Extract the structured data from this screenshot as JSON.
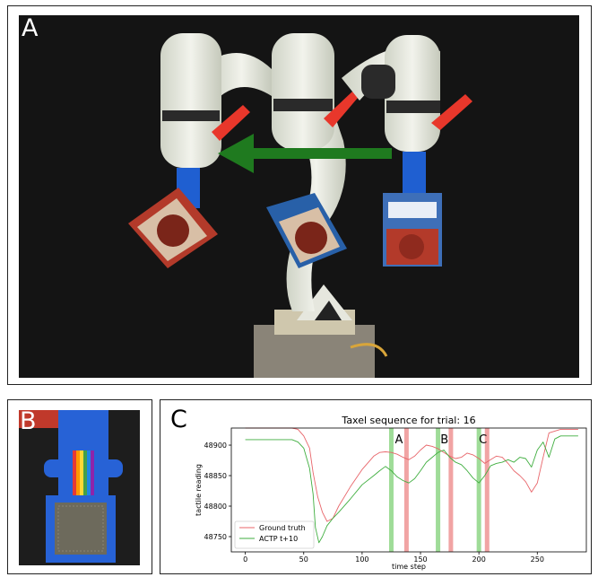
{
  "panels": {
    "a_letter": "A",
    "b_letter": "B",
    "c_letter": "C"
  },
  "colors": {
    "ground_truth": "#e8656a",
    "prediction": "#3fae3f",
    "green_band": "#9fdc98",
    "red_band": "#f1a4a4",
    "arrow": "#1f7a1f",
    "gripper": "#e8372b",
    "sensor": "#1f5fd1"
  },
  "chart_data": {
    "type": "line",
    "title": "Taxel sequence for trial: 16",
    "xlabel": "time step",
    "ylabel": "tactile reading",
    "xlim": [
      -12,
      292
    ],
    "ylim": [
      48725,
      48928
    ],
    "xticks": [
      0,
      50,
      100,
      150,
      200,
      250
    ],
    "yticks": [
      48750,
      48800,
      48850,
      48900
    ],
    "legend_position": "lower-left",
    "series": [
      {
        "name": "Ground truth",
        "x": [
          0,
          20,
          40,
          45,
          50,
          55,
          58,
          62,
          66,
          70,
          75,
          80,
          90,
          100,
          110,
          115,
          120,
          125,
          130,
          135,
          140,
          145,
          150,
          155,
          160,
          165,
          170,
          175,
          180,
          185,
          190,
          195,
          200,
          205,
          210,
          215,
          220,
          225,
          230,
          235,
          240,
          245,
          250,
          255,
          260,
          270,
          285
        ],
        "y": [
          48928,
          48928,
          48928,
          48926,
          48915,
          48895,
          48855,
          48815,
          48790,
          48775,
          48780,
          48800,
          48832,
          48860,
          48882,
          48888,
          48889,
          48888,
          48885,
          48880,
          48876,
          48882,
          48892,
          48900,
          48898,
          48894,
          48888,
          48882,
          48878,
          48880,
          48887,
          48884,
          48878,
          48870,
          48876,
          48882,
          48880,
          48870,
          48858,
          48850,
          48840,
          48823,
          48838,
          48880,
          48920,
          48926,
          48926
        ]
      },
      {
        "name": "ACTP t+10",
        "x": [
          0,
          20,
          40,
          45,
          50,
          55,
          58,
          60,
          63,
          66,
          70,
          75,
          80,
          90,
          100,
          110,
          115,
          120,
          125,
          130,
          135,
          140,
          145,
          150,
          155,
          160,
          165,
          170,
          175,
          180,
          185,
          190,
          195,
          200,
          205,
          210,
          215,
          220,
          225,
          230,
          235,
          240,
          245,
          250,
          255,
          260,
          265,
          270,
          285
        ],
        "y": [
          48909,
          48909,
          48909,
          48905,
          48895,
          48862,
          48820,
          48765,
          48740,
          48750,
          48768,
          48780,
          48790,
          48812,
          48835,
          48850,
          48858,
          48865,
          48858,
          48848,
          48842,
          48838,
          48845,
          48858,
          48872,
          48880,
          48888,
          48892,
          48880,
          48872,
          48868,
          48858,
          48846,
          48838,
          48850,
          48866,
          48870,
          48872,
          48876,
          48872,
          48880,
          48878,
          48864,
          48892,
          48905,
          48880,
          48910,
          48915,
          48915
        ]
      }
    ],
    "event_bands": [
      {
        "label": "A",
        "green_x": 125,
        "red_x": 138
      },
      {
        "label": "B",
        "green_x": 165,
        "red_x": 176
      },
      {
        "label": "C",
        "green_x": 200,
        "red_x": 207
      }
    ]
  }
}
